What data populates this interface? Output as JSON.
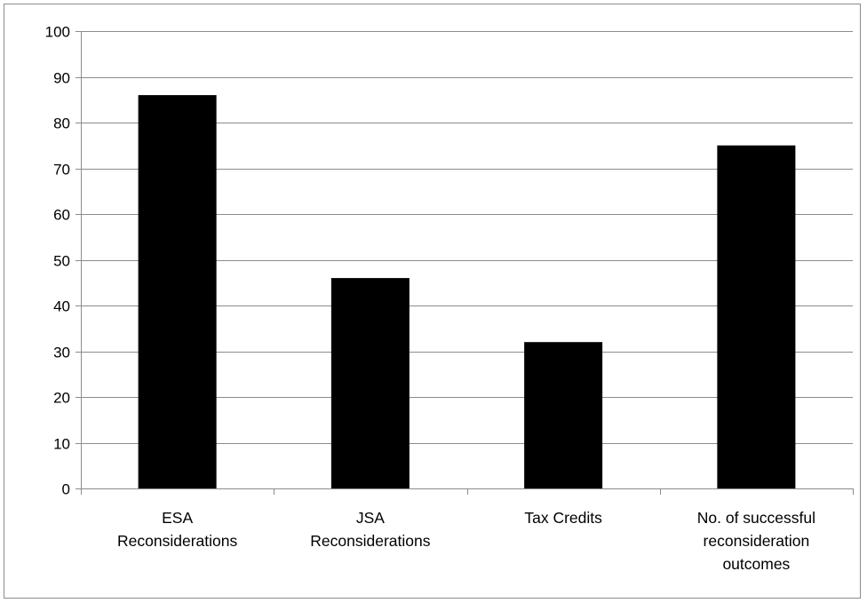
{
  "chart_data": {
    "type": "bar",
    "categories": [
      [
        "ESA",
        "Reconsiderations"
      ],
      [
        "JSA",
        "Reconsiderations"
      ],
      [
        "Tax Credits"
      ],
      [
        "No. of successful",
        "reconsideration",
        "outcomes"
      ]
    ],
    "values": [
      86,
      46,
      32,
      75
    ],
    "title": "",
    "xlabel": "",
    "ylabel": "",
    "ylim": [
      0,
      100
    ],
    "ytick_step": 10,
    "grid": true,
    "legend": "none",
    "colors": {
      "bar": "#000000",
      "grid": "#8c8c8c",
      "axis": "#8c8c8c",
      "frame": "#8c8c8c"
    }
  }
}
